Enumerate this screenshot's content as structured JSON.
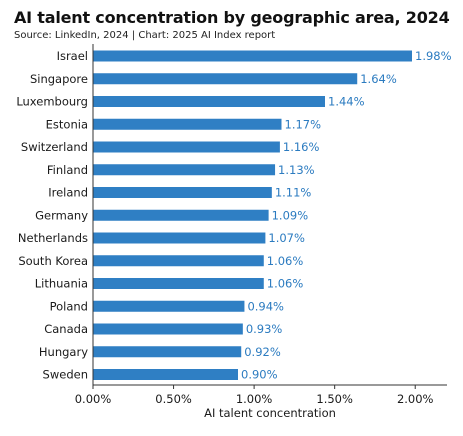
{
  "chart_data": {
    "type": "bar",
    "orientation": "horizontal",
    "title": "AI talent concentration by geographic area, 2024",
    "subtitle": "Source: LinkedIn, 2024 | Chart: 2025 AI Index report",
    "xlabel": "AI talent concentration",
    "ylabel": "",
    "xlim": [
      0,
      2.2
    ],
    "x_ticks": [
      0,
      0.5,
      1.0,
      1.5,
      2.0
    ],
    "x_tick_labels": [
      "0.00%",
      "0.50%",
      "1.00%",
      "1.50%",
      "2.00%"
    ],
    "grid": false,
    "bar_color": "#2f7fc4",
    "value_label_color": "#2b7bc0",
    "categories": [
      "Israel",
      "Singapore",
      "Luxembourg",
      "Estonia",
      "Switzerland",
      "Finland",
      "Ireland",
      "Germany",
      "Netherlands",
      "South Korea",
      "Lithuania",
      "Poland",
      "Canada",
      "Hungary",
      "Sweden"
    ],
    "values": [
      1.98,
      1.64,
      1.44,
      1.17,
      1.16,
      1.13,
      1.11,
      1.09,
      1.07,
      1.06,
      1.06,
      0.94,
      0.93,
      0.92,
      0.9
    ],
    "value_labels": [
      "1.98%",
      "1.64%",
      "1.44%",
      "1.17%",
      "1.16%",
      "1.13%",
      "1.11%",
      "1.09%",
      "1.07%",
      "1.06%",
      "1.06%",
      "0.94%",
      "0.93%",
      "0.92%",
      "0.90%"
    ]
  }
}
